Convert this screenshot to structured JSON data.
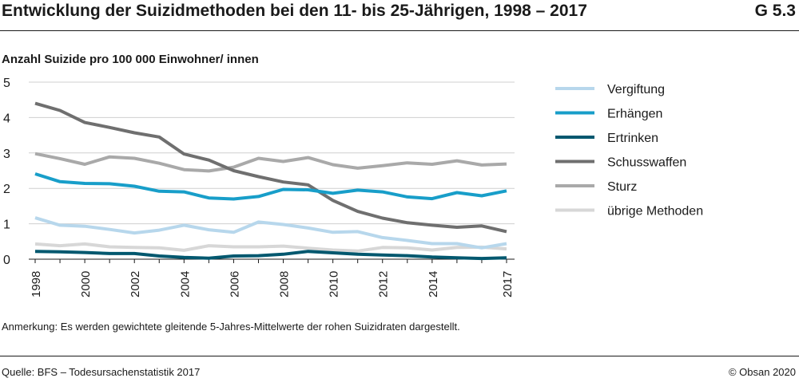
{
  "header": {
    "title": "Entwicklung der Suizidmethoden bei den 11- bis 25-Jährigen, 1998 – 2017",
    "code": "G 5.3"
  },
  "footer": {
    "note": "Anmerkung: Es werden gewichtete gleitende 5-Jahres-Mittelwerte der rohen Suizidraten dargestellt.",
    "source": "Quelle: BFS – Todesursachenstatistik 2017",
    "copyright": "© Obsan 2020"
  },
  "chart_data": {
    "type": "line",
    "title": "Entwicklung der Suizidmethoden bei den 11- bis 25-Jährigen, 1998 – 2017",
    "ylabel": "Anzahl Suizide pro 100 000 Einwohner/ innen",
    "xlabel": "",
    "ylim": [
      0,
      5
    ],
    "yticks": [
      0,
      1,
      2,
      3,
      4,
      5
    ],
    "x": [
      1998,
      1999,
      2000,
      2001,
      2002,
      2003,
      2004,
      2005,
      2006,
      2007,
      2008,
      2009,
      2010,
      2011,
      2012,
      2013,
      2014,
      2015,
      2016,
      2017
    ],
    "xtick_labels": [
      "1998",
      "2000",
      "2002",
      "2004",
      "2006",
      "2008",
      "2010",
      "2012",
      "2014",
      "2017"
    ],
    "xtick_values": [
      1998,
      2000,
      2002,
      2004,
      2006,
      2008,
      2010,
      2012,
      2014,
      2017
    ],
    "grid": "horizontal",
    "legend_position": "right",
    "series": [
      {
        "name": "Vergiftung",
        "color": "#b7d7ec",
        "values": [
          1.17,
          0.96,
          0.93,
          0.84,
          0.74,
          0.82,
          0.96,
          0.83,
          0.76,
          1.05,
          0.98,
          0.88,
          0.76,
          0.78,
          0.61,
          0.53,
          0.44,
          0.44,
          0.32,
          0.44
        ]
      },
      {
        "name": "Erhängen",
        "color": "#189ec9",
        "values": [
          2.41,
          2.19,
          2.14,
          2.13,
          2.06,
          1.92,
          1.9,
          1.73,
          1.7,
          1.77,
          1.97,
          1.96,
          1.86,
          1.95,
          1.9,
          1.76,
          1.71,
          1.88,
          1.79,
          1.93
        ]
      },
      {
        "name": "Ertrinken",
        "color": "#02586f",
        "values": [
          0.22,
          0.21,
          0.19,
          0.16,
          0.16,
          0.09,
          0.05,
          0.03,
          0.09,
          0.1,
          0.14,
          0.22,
          0.18,
          0.14,
          0.12,
          0.1,
          0.06,
          0.04,
          0.02,
          0.04
        ]
      },
      {
        "name": "Schusswaffen",
        "color": "#6f6f6f",
        "values": [
          4.4,
          4.2,
          3.86,
          3.72,
          3.57,
          3.45,
          2.97,
          2.8,
          2.5,
          2.33,
          2.18,
          2.1,
          1.66,
          1.35,
          1.16,
          1.03,
          0.96,
          0.9,
          0.94,
          0.78
        ]
      },
      {
        "name": "Sturz",
        "color": "#a9a9a9",
        "values": [
          2.98,
          2.84,
          2.68,
          2.89,
          2.85,
          2.71,
          2.53,
          2.49,
          2.6,
          2.85,
          2.76,
          2.87,
          2.67,
          2.57,
          2.64,
          2.72,
          2.68,
          2.78,
          2.66,
          2.69
        ]
      },
      {
        "name": "übrige Methoden",
        "color": "#d7d7d7",
        "values": [
          0.43,
          0.38,
          0.43,
          0.35,
          0.33,
          0.32,
          0.25,
          0.38,
          0.35,
          0.35,
          0.37,
          0.31,
          0.26,
          0.23,
          0.33,
          0.32,
          0.26,
          0.33,
          0.34,
          0.29
        ]
      }
    ]
  }
}
